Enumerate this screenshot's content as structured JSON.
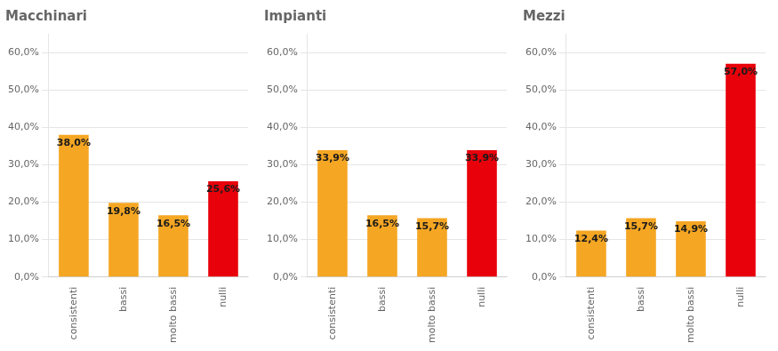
{
  "chart_data": [
    {
      "type": "bar",
      "title": "Macchinari",
      "categories": [
        "consistenti",
        "bassi",
        "molto bassi",
        "nulli"
      ],
      "values": [
        38.0,
        19.8,
        16.5,
        25.6
      ],
      "value_labels": [
        "38,0%",
        "19,8%",
        "16,5%",
        "25,6%"
      ],
      "colors": [
        "#F5A623",
        "#F5A623",
        "#F5A623",
        "#E8000A"
      ],
      "ylim": [
        0,
        65
      ],
      "yticks": [
        {
          "value": 0,
          "label": "0,0%"
        },
        {
          "value": 10,
          "label": "10,0%"
        },
        {
          "value": 20,
          "label": "20,0%"
        },
        {
          "value": 30,
          "label": "30,0%"
        },
        {
          "value": 40,
          "label": "40,0%"
        },
        {
          "value": 50,
          "label": "50,0%"
        },
        {
          "value": 60,
          "label": "60,0%"
        }
      ],
      "grid": true,
      "data_labels": true
    },
    {
      "type": "bar",
      "title": "Impianti",
      "categories": [
        "consistenti",
        "bassi",
        "molto bassi",
        "nulli"
      ],
      "values": [
        33.9,
        16.5,
        15.7,
        33.9
      ],
      "value_labels": [
        "33,9%",
        "16,5%",
        "15,7%",
        "33,9%"
      ],
      "colors": [
        "#F5A623",
        "#F5A623",
        "#F5A623",
        "#E8000A"
      ],
      "ylim": [
        0,
        65
      ],
      "yticks": [
        {
          "value": 0,
          "label": "0,0%"
        },
        {
          "value": 10,
          "label": "10,0%"
        },
        {
          "value": 20,
          "label": "20,0%"
        },
        {
          "value": 30,
          "label": "30,0%"
        },
        {
          "value": 40,
          "label": "40,0%"
        },
        {
          "value": 50,
          "label": "50,0%"
        },
        {
          "value": 60,
          "label": "60,0%"
        }
      ],
      "grid": true,
      "data_labels": true
    },
    {
      "type": "bar",
      "title": "Mezzi",
      "categories": [
        "consistenti",
        "bassi",
        "molto bassi",
        "nulli"
      ],
      "values": [
        12.4,
        15.7,
        14.9,
        57.0
      ],
      "value_labels": [
        "12,4%",
        "15,7%",
        "14,9%",
        "57,0%"
      ],
      "colors": [
        "#F5A623",
        "#F5A623",
        "#F5A623",
        "#E8000A"
      ],
      "ylim": [
        0,
        65
      ],
      "yticks": [
        {
          "value": 0,
          "label": "0,0%"
        },
        {
          "value": 10,
          "label": "10,0%"
        },
        {
          "value": 20,
          "label": "20,0%"
        },
        {
          "value": 30,
          "label": "30,0%"
        },
        {
          "value": 40,
          "label": "40,0%"
        },
        {
          "value": 50,
          "label": "50,0%"
        },
        {
          "value": 60,
          "label": "60,0%"
        }
      ],
      "grid": true,
      "data_labels": true
    }
  ]
}
